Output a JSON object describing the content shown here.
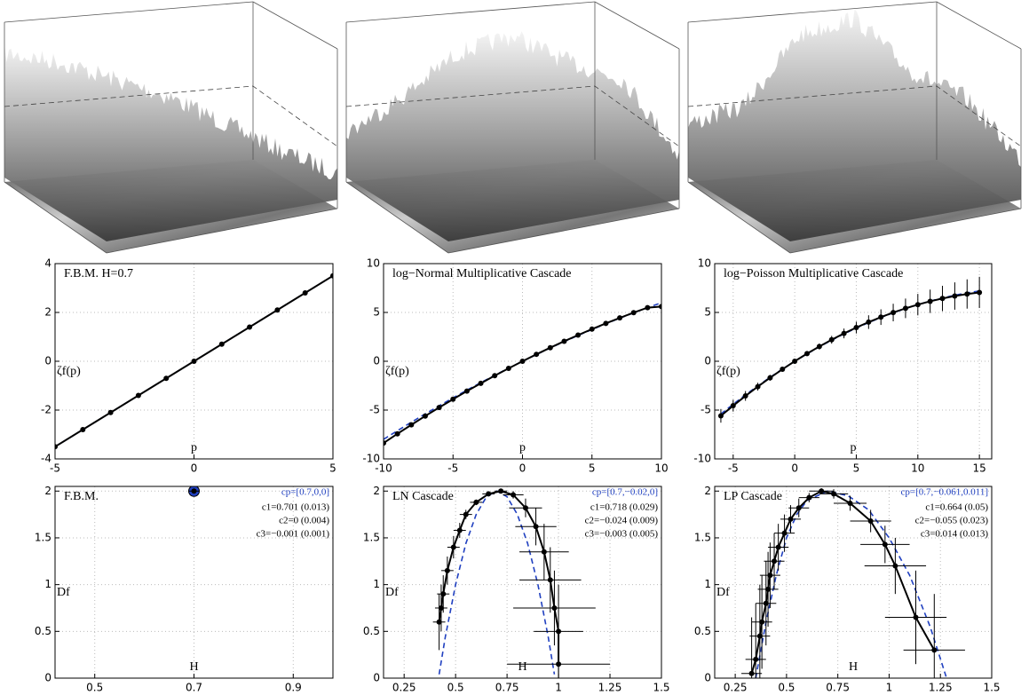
{
  "chart_data": [
    {
      "type": "line",
      "title": "F.B.M. H=0.7",
      "xlabel": "p",
      "ylabel": "ζf(p)",
      "xlim": [
        -5,
        5
      ],
      "ylim": [
        -4,
        4
      ],
      "xticks": [
        -5,
        0,
        5
      ],
      "yticks": [
        -4,
        -2,
        0,
        2,
        4
      ],
      "grid": true,
      "series": [
        {
          "color": "#2040c0",
          "dashed": true,
          "x": [
            -5,
            5
          ],
          "values": [
            -3.5,
            3.5
          ]
        },
        {
          "color": "#000000",
          "marker": true,
          "x": [
            -5,
            -4,
            -3,
            -2,
            -1,
            0,
            1,
            2,
            3,
            4,
            5
          ],
          "values": [
            -3.5,
            -2.8,
            -2.1,
            -1.4,
            -0.7,
            0,
            0.7,
            1.4,
            2.1,
            2.8,
            3.5
          ]
        }
      ]
    },
    {
      "type": "line",
      "title": "log−Normal Multiplicative Cascade",
      "xlabel": "p",
      "ylabel": "ζf(p)",
      "xlim": [
        -10,
        10
      ],
      "ylim": [
        -10,
        10
      ],
      "xticks": [
        -10,
        -5,
        0,
        5,
        10
      ],
      "yticks": [
        -10,
        -5,
        0,
        5,
        10
      ],
      "grid": true,
      "series": [
        {
          "color": "#2040c0",
          "dashed": true,
          "x": [
            -10,
            -9,
            -8,
            -7,
            -6,
            -5,
            -4,
            -3,
            -2,
            -1,
            0,
            1,
            2,
            3,
            4,
            5,
            6,
            7,
            8,
            9,
            10
          ],
          "values": [
            -8,
            -7.11,
            -6.24,
            -5.39,
            -4.56,
            -3.75,
            -2.96,
            -2.19,
            -1.44,
            -0.71,
            0,
            0.69,
            1.36,
            2.01,
            2.64,
            3.25,
            3.84,
            4.41,
            4.96,
            5.49,
            6
          ]
        },
        {
          "color": "#000000",
          "marker": true,
          "x": [
            -10,
            -9,
            -8,
            -7,
            -6,
            -5,
            -4,
            -3,
            -2,
            -1,
            0,
            1,
            2,
            3,
            4,
            5,
            6,
            7,
            8,
            9,
            10
          ],
          "values": [
            -8.38,
            -7.43,
            -6.51,
            -5.61,
            -4.74,
            -3.89,
            -3.06,
            -2.26,
            -1.48,
            -0.73,
            0,
            0.71,
            1.39,
            2.05,
            2.68,
            3.29,
            3.88,
            4.44,
            4.98,
            5.49,
            5.6
          ]
        }
      ]
    },
    {
      "type": "line",
      "title": "log−Poisson Multiplicative Cascade",
      "xlabel": "p",
      "ylabel": "ζf(p)",
      "xlim": [
        -6.5,
        16
      ],
      "ylim": [
        -10,
        10
      ],
      "xticks": [
        -5,
        0,
        5,
        10,
        15
      ],
      "yticks": [
        -10,
        -5,
        0,
        5,
        10
      ],
      "grid": true,
      "series": [
        {
          "color": "#2040c0",
          "dashed": true,
          "x": [
            -6,
            -5,
            -4,
            -3,
            -2,
            -1,
            0,
            1,
            2,
            3,
            4,
            5,
            6,
            7,
            8,
            9,
            10,
            11,
            12,
            13,
            14,
            15
          ],
          "values": [
            -5.4,
            -4.4,
            -3.44,
            -2.52,
            -1.64,
            -0.8,
            0,
            0.76,
            1.48,
            2.16,
            2.8,
            3.4,
            3.96,
            4.48,
            4.96,
            5.4,
            5.8,
            6.16,
            6.48,
            6.76,
            7,
            7.2
          ]
        },
        {
          "color": "#000000",
          "marker": true,
          "x": [
            -6,
            -5,
            -4,
            -3,
            -2,
            -1,
            0,
            1,
            2,
            3,
            4,
            5,
            6,
            7,
            8,
            9,
            10,
            11,
            12,
            13,
            14,
            15
          ],
          "values": [
            -5.59,
            -4.55,
            -3.55,
            -2.6,
            -1.69,
            -0.82,
            0,
            0.78,
            1.51,
            2.2,
            2.85,
            3.45,
            4.01,
            4.52,
            4.99,
            5.42,
            5.8,
            6.14,
            6.43,
            6.68,
            6.89,
            7.05
          ],
          "errors": [
            0.7,
            0.6,
            0.5,
            0.4,
            0.3,
            0.2,
            0.1,
            0.2,
            0.3,
            0.4,
            0.5,
            0.6,
            0.7,
            0.8,
            0.9,
            1,
            1.1,
            1.2,
            1.3,
            1.4,
            1.5,
            1.6
          ]
        }
      ]
    },
    {
      "type": "errorbar",
      "title": "F.B.M.",
      "xlabel": "H",
      "ylabel": "Df",
      "xlim": [
        0.42,
        0.98
      ],
      "ylim": [
        0,
        2.05
      ],
      "xticks": [
        0.5,
        0.7,
        0.9
      ],
      "yticks": [
        0,
        0.5,
        1,
        1.5,
        2
      ],
      "grid": true,
      "fit_label": "cp=[0.7,0,0]",
      "coefficients": [
        "c1=0.701 (0.013)",
        "c2=0 (0.004)",
        "c3=−0.001 (0.001)"
      ],
      "series": [
        {
          "color": "#2040c0",
          "marker": true,
          "big": true,
          "x": [
            0.7
          ],
          "values": [
            2
          ]
        },
        {
          "color": "#000000",
          "marker": true,
          "x": [
            0.7
          ],
          "values": [
            2
          ],
          "errors": [
            0.01
          ],
          "xerrors": [
            0.01
          ]
        }
      ]
    },
    {
      "type": "errorbar",
      "title": "LN Cascade",
      "xlabel": "H",
      "ylabel": "Df",
      "xlim": [
        0.15,
        1.5
      ],
      "ylim": [
        0,
        2.05
      ],
      "xticks": [
        0.25,
        0.5,
        0.75,
        1,
        1.25,
        1.5
      ],
      "yticks": [
        0,
        0.5,
        1,
        1.5,
        2
      ],
      "grid": true,
      "fit_label": "cp=[0.7,−0.02,0]",
      "coefficients": [
        "c1=0.718 (0.029)",
        "c2=−0.024 (0.009)",
        "c3=−0.003 (0.005)"
      ],
      "series": [
        {
          "color": "#2040c0",
          "dashed": true,
          "x": [
            0.42,
            0.45,
            0.5,
            0.55,
            0.6,
            0.65,
            0.7,
            0.75,
            0.8,
            0.85,
            0.9,
            0.95,
            0.98
          ],
          "values": [
            0.04,
            0.44,
            1,
            1.44,
            1.75,
            1.94,
            2,
            1.94,
            1.75,
            1.44,
            1,
            0.44,
            0.04
          ]
        },
        {
          "color": "#000000",
          "marker": true,
          "x": [
            0.42,
            0.43,
            0.44,
            0.46,
            0.49,
            0.52,
            0.55,
            0.6,
            0.66,
            0.72,
            0.78,
            0.84,
            0.89,
            0.93,
            0.96,
            0.98,
            1,
            1
          ],
          "values": [
            0.6,
            0.75,
            0.9,
            1.15,
            1.4,
            1.58,
            1.75,
            1.88,
            1.97,
            2,
            1.96,
            1.82,
            1.62,
            1.35,
            1.05,
            0.75,
            0.5,
            0.15
          ],
          "errors": [
            0.3,
            0.25,
            0.2,
            0.15,
            0.12,
            0.08,
            0.05,
            0.03,
            0.02,
            0.02,
            0.04,
            0.1,
            0.2,
            0.3,
            0.35,
            0.4,
            0.5,
            0.3
          ],
          "xerrors": [
            0.03,
            0.03,
            0.03,
            0.03,
            0.03,
            0.03,
            0.03,
            0.03,
            0.03,
            0.03,
            0.05,
            0.08,
            0.1,
            0.12,
            0.15,
            0.2,
            0.12,
            0.25
          ]
        }
      ]
    },
    {
      "type": "errorbar",
      "title": "LP Cascade",
      "xlabel": "H",
      "ylabel": "Df",
      "xlim": [
        0.15,
        1.5
      ],
      "ylim": [
        0,
        2.05
      ],
      "xticks": [
        0.25,
        0.5,
        0.75,
        1,
        1.25,
        1.5
      ],
      "yticks": [
        0,
        0.5,
        1,
        1.5,
        2
      ],
      "grid": true,
      "fit_label": "cp=[0.7,−0.061,0.011]",
      "coefficients": [
        "c1=0.664 (0.05)",
        "c2=−0.055 (0.023)",
        "c3=0.014 (0.013)"
      ],
      "series": [
        {
          "color": "#2040c0",
          "dashed": true,
          "x": [
            0.35,
            0.4,
            0.45,
            0.5,
            0.55,
            0.6,
            0.7,
            0.8,
            0.9,
            1,
            1.1,
            1.2,
            1.28
          ],
          "values": [
            0,
            0.6,
            1.1,
            1.5,
            1.75,
            1.9,
            2,
            1.95,
            1.8,
            1.5,
            1.1,
            0.55,
            0
          ]
        },
        {
          "color": "#000000",
          "marker": true,
          "x": [
            0.33,
            0.35,
            0.37,
            0.38,
            0.4,
            0.41,
            0.42,
            0.44,
            0.46,
            0.49,
            0.52,
            0.56,
            0.61,
            0.67,
            0.73,
            0.81,
            0.91,
            0.98,
            1.03,
            1.13,
            1.22
          ],
          "values": [
            0.05,
            0.2,
            0.45,
            0.6,
            0.8,
            0.95,
            1.1,
            1.25,
            1.4,
            1.55,
            1.7,
            1.82,
            1.93,
            2,
            1.97,
            1.87,
            1.68,
            1.43,
            1.2,
            0.65,
            0.3
          ],
          "errors": [
            0.6,
            0.6,
            0.55,
            0.5,
            0.45,
            0.4,
            0.35,
            0.3,
            0.25,
            0.2,
            0.15,
            0.1,
            0.05,
            0.03,
            0.05,
            0.08,
            0.12,
            0.2,
            0.3,
            0.5,
            0.6
          ],
          "xerrors": [
            0.05,
            0.05,
            0.05,
            0.05,
            0.05,
            0.05,
            0.05,
            0.05,
            0.05,
            0.05,
            0.05,
            0.05,
            0.05,
            0.06,
            0.07,
            0.08,
            0.1,
            0.12,
            0.15,
            0.15,
            0.15
          ]
        }
      ]
    }
  ]
}
